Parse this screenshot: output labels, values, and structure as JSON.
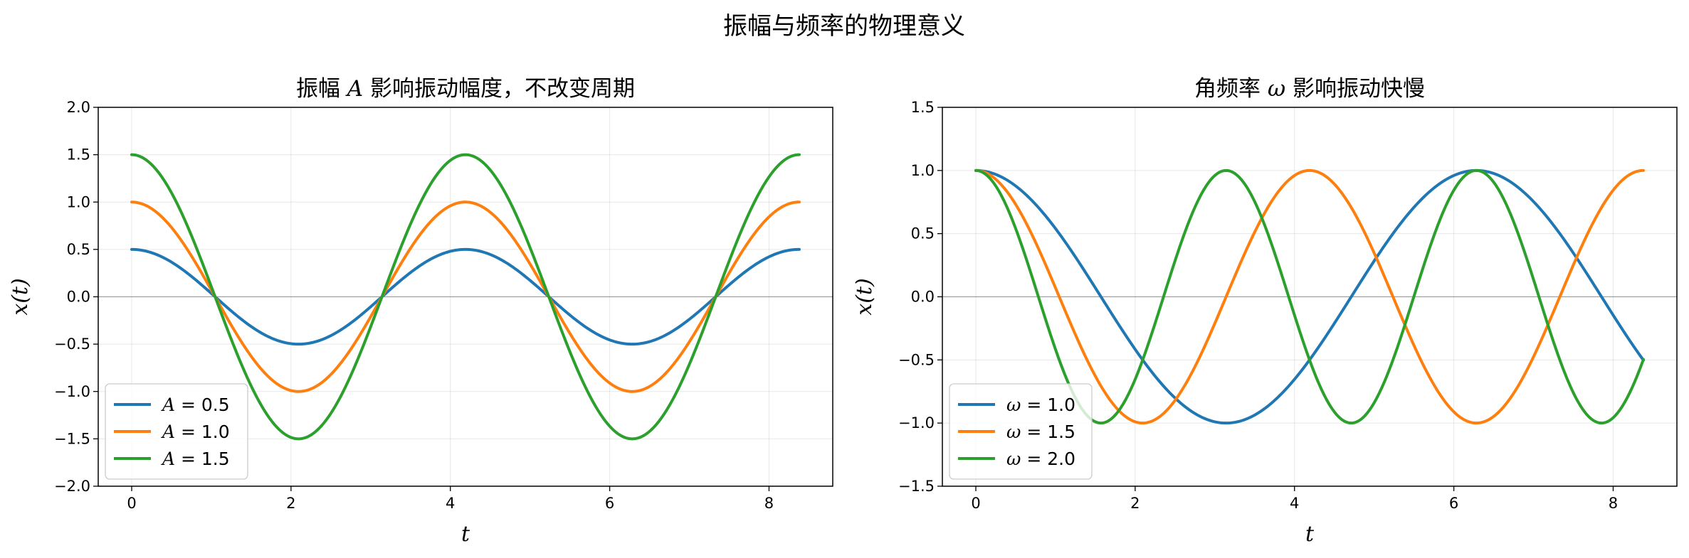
{
  "figure": {
    "suptitle": "振幅与频率的物理意义"
  },
  "chart_data": [
    {
      "type": "line",
      "title": "振幅 A 影响振动幅度，不改变周期",
      "title_parts": {
        "pre": "振幅 ",
        "sym": "A",
        "post": " 影响振动幅度，不改变周期"
      },
      "xlabel": "t",
      "ylabel": "x(t)",
      "xlim": [
        -0.42,
        8.8
      ],
      "ylim": [
        -2.0,
        2.0
      ],
      "xticks": [
        0,
        2,
        4,
        6,
        8
      ],
      "yticks": [
        -2.0,
        -1.5,
        -1.0,
        -0.5,
        0.0,
        0.5,
        1.0,
        1.5,
        2.0
      ],
      "ytick_labels": [
        "−2.0",
        "−1.5",
        "−1.0",
        "−0.5",
        "0.0",
        "0.5",
        "1.0",
        "1.5",
        "2.0"
      ],
      "xtick_labels": [
        "0",
        "2",
        "4",
        "6",
        "8"
      ],
      "grid": true,
      "zero_line": true,
      "legend_position": "lower-left",
      "x_range": [
        0,
        8.38
      ],
      "series": [
        {
          "name": "A = 0.5",
          "legend_sym": "A",
          "legend_val": "0.5",
          "color": "#1f77b4",
          "amplitude": 0.5,
          "omega": 1.5,
          "x": [
            0,
            1.05,
            2.09,
            3.14,
            4.19,
            5.24,
            6.28,
            7.33,
            8.38
          ],
          "y": [
            0.5,
            0.0,
            -0.5,
            0.0,
            0.5,
            0.0,
            -0.5,
            0.0,
            0.5
          ]
        },
        {
          "name": "A = 1.0",
          "legend_sym": "A",
          "legend_val": "1.0",
          "color": "#ff7f0e",
          "amplitude": 1.0,
          "omega": 1.5,
          "x": [
            0,
            1.05,
            2.09,
            3.14,
            4.19,
            5.24,
            6.28,
            7.33,
            8.38
          ],
          "y": [
            1.0,
            0.0,
            -1.0,
            0.0,
            1.0,
            0.0,
            -1.0,
            0.0,
            1.0
          ]
        },
        {
          "name": "A = 1.5",
          "legend_sym": "A",
          "legend_val": "1.5",
          "color": "#2ca02c",
          "amplitude": 1.5,
          "omega": 1.5,
          "x": [
            0,
            1.05,
            2.09,
            3.14,
            4.19,
            5.24,
            6.28,
            7.33,
            8.38
          ],
          "y": [
            1.5,
            0.0,
            -1.5,
            0.0,
            1.5,
            0.0,
            -1.5,
            0.0,
            1.5
          ]
        }
      ]
    },
    {
      "type": "line",
      "title": "角频率 ω 影响振动快慢",
      "title_parts": {
        "pre": "角频率 ",
        "sym": "ω",
        "post": " 影响振动快慢"
      },
      "xlabel": "t",
      "ylabel": "x(t)",
      "xlim": [
        -0.42,
        8.8
      ],
      "ylim": [
        -1.5,
        1.5
      ],
      "xticks": [
        0,
        2,
        4,
        6,
        8
      ],
      "yticks": [
        -1.5,
        -1.0,
        -0.5,
        0.0,
        0.5,
        1.0,
        1.5
      ],
      "ytick_labels": [
        "−1.5",
        "−1.0",
        "−0.5",
        "0.0",
        "0.5",
        "1.0",
        "1.5"
      ],
      "xtick_labels": [
        "0",
        "2",
        "4",
        "6",
        "8"
      ],
      "grid": true,
      "zero_line": true,
      "legend_position": "lower-left",
      "x_range": [
        0,
        8.38
      ],
      "series": [
        {
          "name": "ω = 1.0",
          "legend_sym": "ω",
          "legend_val": "1.0",
          "color": "#1f77b4",
          "amplitude": 1.0,
          "omega": 1.0,
          "x": [
            0,
            1.57,
            3.14,
            4.71,
            6.28,
            8.38
          ],
          "y": [
            1.0,
            0.0,
            -1.0,
            0.0,
            1.0,
            -0.5
          ]
        },
        {
          "name": "ω = 1.5",
          "legend_sym": "ω",
          "legend_val": "1.5",
          "color": "#ff7f0e",
          "amplitude": 1.0,
          "omega": 1.5,
          "x": [
            0,
            1.05,
            2.09,
            3.14,
            4.19,
            5.24,
            6.28,
            7.33,
            8.38
          ],
          "y": [
            1.0,
            0.0,
            -1.0,
            0.0,
            1.0,
            0.0,
            -1.0,
            0.0,
            1.0
          ]
        },
        {
          "name": "ω = 2.0",
          "legend_sym": "ω",
          "legend_val": "2.0",
          "color": "#2ca02c",
          "amplitude": 1.0,
          "omega": 2.0,
          "x": [
            0,
            0.79,
            1.57,
            2.36,
            3.14,
            3.93,
            4.71,
            5.5,
            6.28,
            7.07,
            7.85,
            8.38
          ],
          "y": [
            1.0,
            0.0,
            -1.0,
            0.0,
            1.0,
            0.0,
            -1.0,
            0.0,
            1.0,
            0.0,
            -1.0,
            -0.5
          ]
        }
      ]
    }
  ]
}
